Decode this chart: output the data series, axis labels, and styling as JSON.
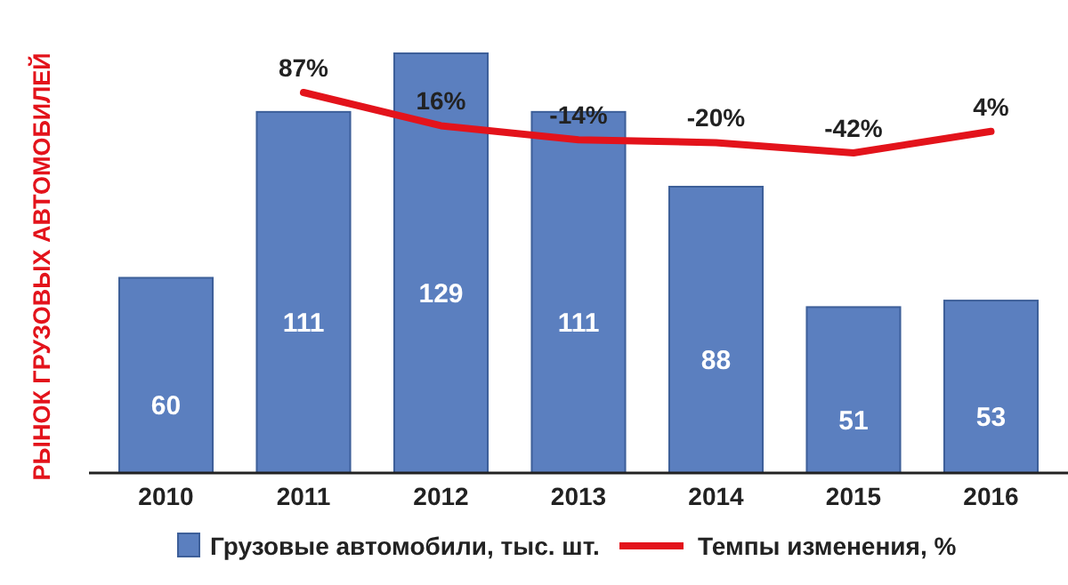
{
  "chart_data": {
    "type": "bar",
    "ylabel": "РЫНОК ГРУЗОВЫХ АВТОМОБИЛЕЙ",
    "categories": [
      "2010",
      "2011",
      "2012",
      "2013",
      "2014",
      "2015",
      "2016"
    ],
    "data_labels": true,
    "legend": "bottom",
    "tick_labels": "x",
    "series": [
      {
        "name": "Грузовые автомобили, тыс. шт.",
        "color": "#5b7fbf",
        "values": [
          60,
          111,
          129,
          111,
          88,
          51,
          53
        ]
      },
      {
        "name": "Темпы изменения, %",
        "type": "line",
        "axis": "y2",
        "color": "#e3131b",
        "values": [
          null,
          87,
          16,
          -14,
          -20,
          -42,
          4
        ],
        "value_labels": [
          null,
          "87%",
          "16%",
          "-14%",
          "-20%",
          "-42%",
          "4%"
        ]
      }
    ]
  }
}
